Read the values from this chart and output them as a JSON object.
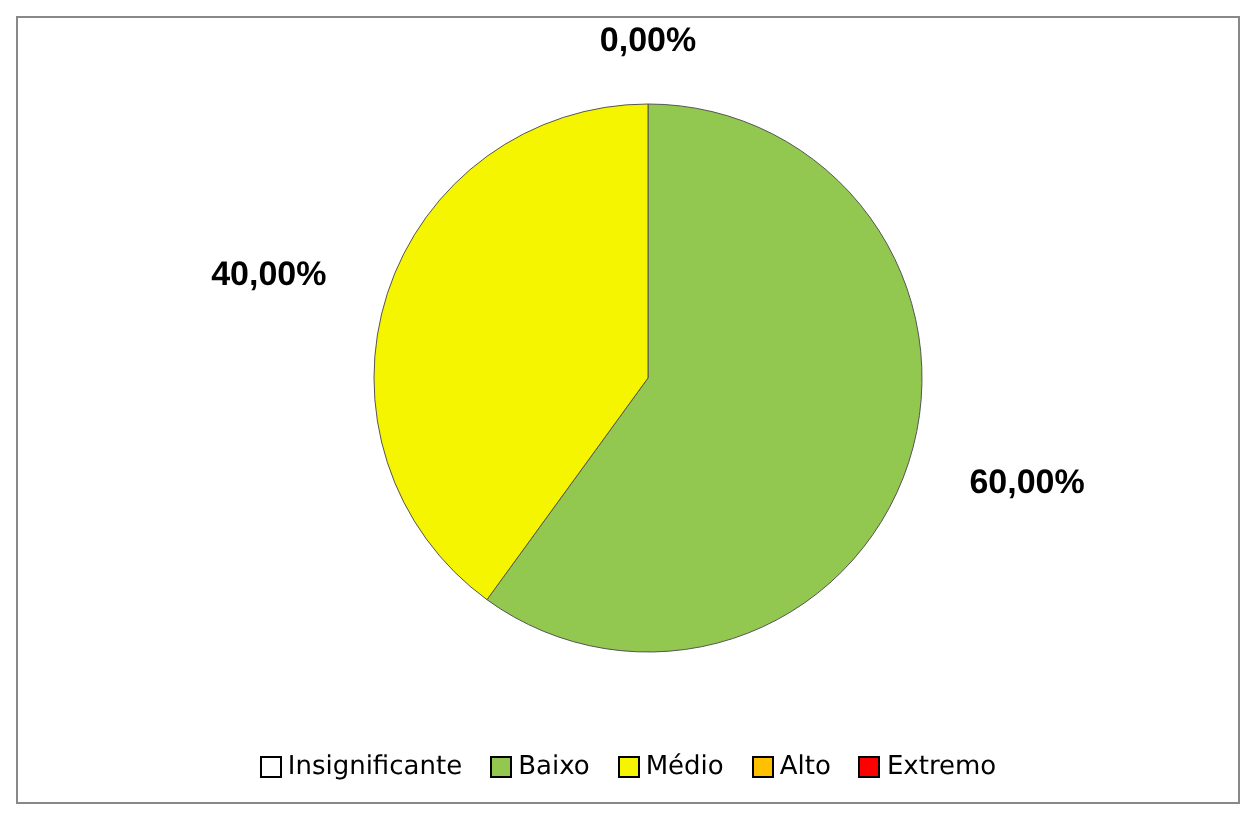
{
  "chart_data": {
    "type": "pie",
    "categories": [
      "Insignificante",
      "Baixo",
      "Médio",
      "Alto",
      "Extremo"
    ],
    "values": [
      0,
      60,
      40,
      0,
      0
    ],
    "colors": [
      "#ffffff",
      "#92c850",
      "#f5f500",
      "#ffc000",
      "#ff0000"
    ],
    "value_labels": [
      "0,00%",
      "60,00%",
      "40,00%",
      null,
      null
    ],
    "legend": "bottom"
  }
}
